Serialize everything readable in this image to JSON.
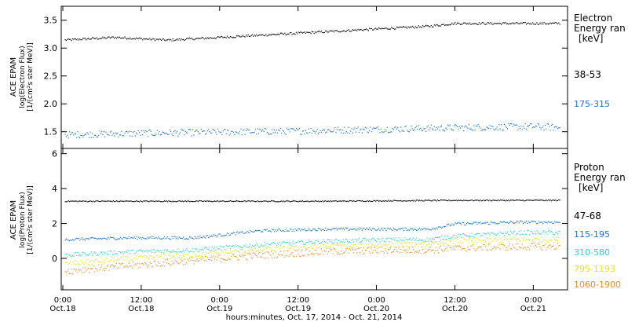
{
  "x_axis": {
    "title": "hours:minutes, Oct. 17, 2014 - Oct. 21, 2014",
    "ticks": [
      {
        "hours": 0,
        "time": "0:00",
        "date": "Oct.18"
      },
      {
        "hours": 12,
        "time": "12:00",
        "date": "Oct.18"
      },
      {
        "hours": 24,
        "time": "0:00",
        "date": "Oct.19"
      },
      {
        "hours": 36,
        "time": "12:00",
        "date": "Oct.19"
      },
      {
        "hours": 48,
        "time": "0:00",
        "date": "Oct.20"
      },
      {
        "hours": 60,
        "time": "12:00",
        "date": "Oct.20"
      },
      {
        "hours": 72,
        "time": "0:00",
        "date": "Oct.21"
      }
    ],
    "range_hours": [
      0,
      77
    ]
  },
  "chart_data": [
    {
      "type": "scatter",
      "instrument": "ACE EPAM",
      "ylabel": "log(Electron Flux)",
      "yunits": "[1/(cm²s ster MeV)]",
      "ylim": [
        1.2,
        3.75
      ],
      "yticks": [
        "1.5",
        "2.0",
        "2.5",
        "3.0",
        "3.5"
      ],
      "legend_title": [
        "Electron",
        "Energy ran",
        "[keV]"
      ],
      "series": [
        {
          "name": "38-53",
          "color": "#000000",
          "x_hours": [
            0,
            8,
            16,
            24,
            32,
            40,
            48,
            56,
            60,
            64,
            72,
            76
          ],
          "y": [
            3.15,
            3.2,
            3.15,
            3.2,
            3.25,
            3.3,
            3.35,
            3.4,
            3.45,
            3.45,
            3.45,
            3.45
          ],
          "scatter": 0.02
        },
        {
          "name": "175-315",
          "color": "#1a74d6",
          "x_hours": [
            0,
            12,
            24,
            36,
            48,
            60,
            72,
            76
          ],
          "y": [
            1.45,
            1.48,
            1.5,
            1.52,
            1.55,
            1.58,
            1.6,
            1.58
          ],
          "scatter": 0.06
        }
      ]
    },
    {
      "type": "scatter",
      "instrument": "ACE EPAM",
      "ylabel": "log(Proton Flux)",
      "yunits": "[1/(cm²s ster MeV)]",
      "ylim": [
        -1.8,
        6.3
      ],
      "yticks": [
        "0",
        "2",
        "4",
        "6"
      ],
      "legend_title": [
        "Proton",
        "Energy ran",
        "[keV]"
      ],
      "series": [
        {
          "name": "47-68",
          "color": "#000000",
          "x_hours": [
            0,
            20,
            40,
            60,
            76
          ],
          "y": [
            3.3,
            3.3,
            3.3,
            3.35,
            3.35
          ],
          "scatter": 0.03
        },
        {
          "name": "115-195",
          "color": "#1a74d6",
          "x_hours": [
            0,
            10,
            20,
            30,
            40,
            50,
            56,
            60,
            70,
            76
          ],
          "y": [
            1.1,
            1.2,
            1.2,
            1.6,
            1.7,
            1.7,
            1.7,
            2.0,
            2.1,
            2.1
          ],
          "scatter": 0.08
        },
        {
          "name": "310-580",
          "color": "#2cd6c8",
          "x_hours": [
            0,
            10,
            20,
            30,
            40,
            50,
            56,
            60,
            70,
            76
          ],
          "y": [
            0.2,
            0.4,
            0.5,
            0.8,
            1.0,
            1.1,
            1.1,
            1.3,
            1.5,
            1.5
          ],
          "scatter": 0.12
        },
        {
          "name": "795-1193",
          "color": "#e6e61a",
          "x_hours": [
            0,
            10,
            20,
            30,
            40,
            50,
            56,
            60,
            70,
            76
          ],
          "y": [
            -0.3,
            0.0,
            0.2,
            0.5,
            0.7,
            0.8,
            0.8,
            1.0,
            1.1,
            1.1
          ],
          "scatter": 0.15
        },
        {
          "name": "1060-1900",
          "color": "#f08c1e",
          "x_hours": [
            0,
            10,
            20,
            30,
            40,
            50,
            56,
            60,
            70,
            76
          ],
          "y": [
            -0.7,
            -0.4,
            -0.1,
            0.2,
            0.4,
            0.5,
            0.5,
            0.6,
            0.7,
            0.7
          ],
          "scatter": 0.2
        }
      ]
    }
  ]
}
